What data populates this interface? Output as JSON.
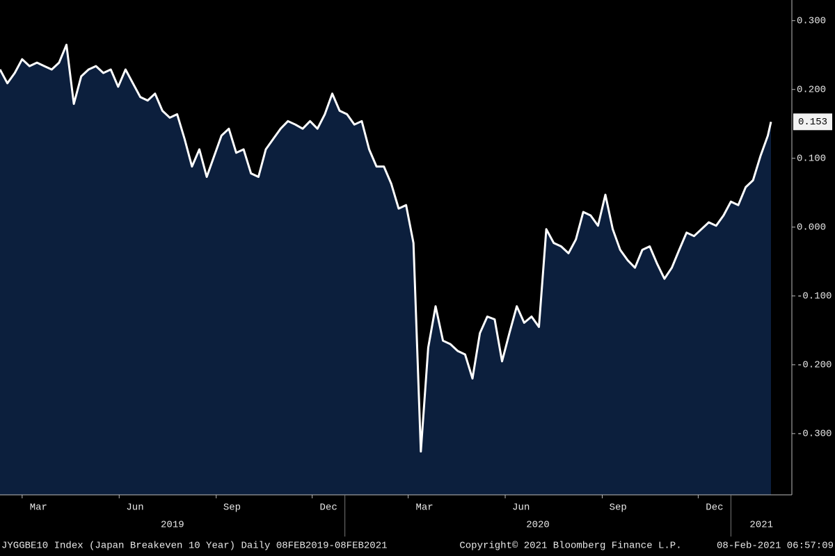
{
  "chart_data": {
    "type": "area",
    "x": [
      "2019-02-08",
      "2019-02-15",
      "2019-02-22",
      "2019-03-01",
      "2019-03-08",
      "2019-03-15",
      "2019-03-22",
      "2019-03-29",
      "2019-04-05",
      "2019-04-12",
      "2019-04-19",
      "2019-04-26",
      "2019-05-03",
      "2019-05-10",
      "2019-05-17",
      "2019-05-24",
      "2019-05-31",
      "2019-06-07",
      "2019-06-14",
      "2019-06-21",
      "2019-06-28",
      "2019-07-05",
      "2019-07-12",
      "2019-07-19",
      "2019-07-26",
      "2019-08-02",
      "2019-08-09",
      "2019-08-16",
      "2019-08-23",
      "2019-08-30",
      "2019-09-06",
      "2019-09-13",
      "2019-09-20",
      "2019-09-27",
      "2019-10-04",
      "2019-10-11",
      "2019-10-18",
      "2019-10-25",
      "2019-11-01",
      "2019-11-08",
      "2019-11-15",
      "2019-11-22",
      "2019-11-29",
      "2019-12-06",
      "2019-12-13",
      "2019-12-20",
      "2019-12-27",
      "2020-01-03",
      "2020-01-10",
      "2020-01-17",
      "2020-01-24",
      "2020-01-31",
      "2020-02-07",
      "2020-02-14",
      "2020-02-21",
      "2020-02-28",
      "2020-03-06",
      "2020-03-13",
      "2020-03-20",
      "2020-03-27",
      "2020-04-03",
      "2020-04-10",
      "2020-04-17",
      "2020-04-24",
      "2020-05-01",
      "2020-05-08",
      "2020-05-15",
      "2020-05-22",
      "2020-05-29",
      "2020-06-05",
      "2020-06-12",
      "2020-06-19",
      "2020-06-26",
      "2020-07-03",
      "2020-07-10",
      "2020-07-17",
      "2020-07-24",
      "2020-07-31",
      "2020-08-07",
      "2020-08-14",
      "2020-08-21",
      "2020-08-28",
      "2020-09-04",
      "2020-09-11",
      "2020-09-18",
      "2020-09-25",
      "2020-10-02",
      "2020-10-09",
      "2020-10-16",
      "2020-10-23",
      "2020-10-30",
      "2020-11-06",
      "2020-11-13",
      "2020-11-20",
      "2020-11-27",
      "2020-12-04",
      "2020-12-11",
      "2020-12-18",
      "2020-12-25",
      "2021-01-01",
      "2021-01-08",
      "2021-01-15",
      "2021-01-22",
      "2021-01-29",
      "2021-02-05",
      "2021-02-08"
    ],
    "values": [
      0.229,
      0.209,
      0.224,
      0.244,
      0.234,
      0.239,
      0.234,
      0.229,
      0.239,
      0.265,
      0.179,
      0.219,
      0.229,
      0.234,
      0.224,
      0.229,
      0.204,
      0.229,
      0.209,
      0.189,
      0.184,
      0.194,
      0.169,
      0.159,
      0.164,
      0.128,
      0.088,
      0.113,
      0.073,
      0.103,
      0.133,
      0.143,
      0.108,
      0.113,
      0.078,
      0.073,
      0.113,
      0.128,
      0.143,
      0.154,
      0.149,
      0.143,
      0.154,
      0.143,
      0.164,
      0.194,
      0.169,
      0.164,
      0.149,
      0.154,
      0.113,
      0.088,
      0.088,
      0.063,
      0.027,
      0.032,
      -0.023,
      -0.326,
      -0.175,
      -0.115,
      -0.165,
      -0.17,
      -0.18,
      -0.185,
      -0.22,
      -0.154,
      -0.13,
      -0.134,
      -0.195,
      -0.154,
      -0.115,
      -0.139,
      -0.13,
      -0.145,
      -0.003,
      -0.023,
      -0.028,
      -0.038,
      -0.018,
      0.022,
      0.017,
      0.002,
      0.047,
      -0.003,
      -0.033,
      -0.048,
      -0.059,
      -0.033,
      -0.028,
      -0.053,
      -0.075,
      -0.059,
      -0.033,
      -0.008,
      -0.013,
      -0.003,
      0.007,
      0.002,
      0.017,
      0.037,
      0.032,
      0.058,
      0.068,
      0.103,
      0.133,
      0.153
    ],
    "color": "#0c1f3d",
    "line_color": "#ffffff",
    "xlim": [
      "2019-02-08",
      "2021-02-08"
    ],
    "xticks": [
      {
        "value": "2019-03",
        "label": "Mar"
      },
      {
        "value": "2019-06",
        "label": "Jun"
      },
      {
        "value": "2019-09",
        "label": "Sep"
      },
      {
        "value": "2019-12",
        "label": "Dec"
      },
      {
        "value": "2020-03",
        "label": "Mar"
      },
      {
        "value": "2020-06",
        "label": "Jun"
      },
      {
        "value": "2020-09",
        "label": "Sep"
      },
      {
        "value": "2020-12",
        "label": "Dec"
      }
    ],
    "years": [
      {
        "value": "2019",
        "label": "2019"
      },
      {
        "value": "2020",
        "label": "2020"
      },
      {
        "value": "2021",
        "label": "2021"
      }
    ],
    "ylim": [
      -0.389,
      0.33
    ],
    "yticks": [
      {
        "value": 0.3,
        "label": "0.300"
      },
      {
        "value": 0.2,
        "label": "0.200"
      },
      {
        "value": 0.1,
        "label": "0.100"
      },
      {
        "value": 0,
        "label": "0.000"
      },
      {
        "value": -0.1,
        "label": "-0.100"
      },
      {
        "value": -0.2,
        "label": "-0.200"
      },
      {
        "value": -0.3,
        "label": "-0.300"
      }
    ],
    "footer_left": "JYGGBE10 Index (Japan Breakeven 10 Year)  Daily 08FEB2019-08FEB2021",
    "footer_center": "Copyright© 2021 Bloomberg Finance L.P.",
    "footer_right": "08-Feb-2021 06:57:09"
  }
}
